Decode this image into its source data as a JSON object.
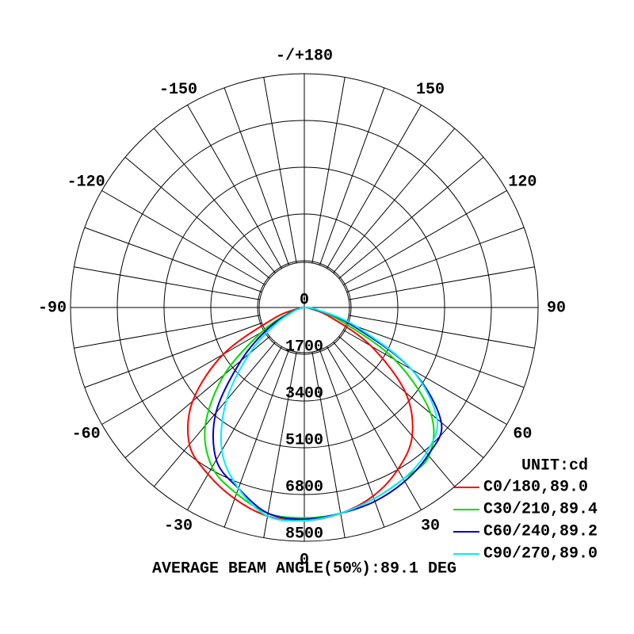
{
  "chart_data": {
    "type": "polar",
    "unit_label": "UNIT:cd",
    "footer": "AVERAGE BEAM ANGLE(50%):89.1 DEG",
    "rlim": [
      0,
      8500
    ],
    "rticks": [
      0,
      1700,
      3400,
      5100,
      6800,
      8500
    ],
    "angle_ticks": [
      {
        "value": 180,
        "label": "-/+180"
      },
      150,
      120,
      90,
      60,
      30,
      0,
      -30,
      -60,
      -90,
      -120,
      -150
    ],
    "angles": [
      -90,
      -80,
      -70,
      -60,
      -50,
      -40,
      -30,
      -20,
      -10,
      0,
      10,
      20,
      30,
      40,
      50,
      60,
      70,
      80,
      90
    ],
    "series": [
      {
        "name": "C0/180,89.0",
        "color": "#ff0000",
        "values": [
          0,
          200,
          1200,
          3400,
          5300,
          6500,
          7000,
          7400,
          7700,
          7750,
          7600,
          7300,
          6800,
          6100,
          4800,
          2800,
          1000,
          200,
          0
        ]
      },
      {
        "name": "C30/210,89.4",
        "color": "#00dd00",
        "values": [
          0,
          100,
          600,
          1800,
          3800,
          5600,
          6700,
          7200,
          7600,
          7650,
          7600,
          7400,
          7200,
          7050,
          6000,
          3800,
          1400,
          300,
          0
        ]
      },
      {
        "name": "C60/240,89.2",
        "color": "#0000cc",
        "values": [
          0,
          100,
          500,
          1500,
          3000,
          5000,
          6400,
          7000,
          7600,
          7700,
          7600,
          7500,
          7300,
          7000,
          6500,
          4500,
          1800,
          400,
          0
        ]
      },
      {
        "name": "C90/270,89.0",
        "color": "#00eeff",
        "values": [
          0,
          100,
          400,
          1200,
          2600,
          4400,
          6000,
          7000,
          7700,
          7750,
          7600,
          7400,
          7200,
          6900,
          6300,
          4500,
          2000,
          500,
          0
        ]
      }
    ]
  }
}
